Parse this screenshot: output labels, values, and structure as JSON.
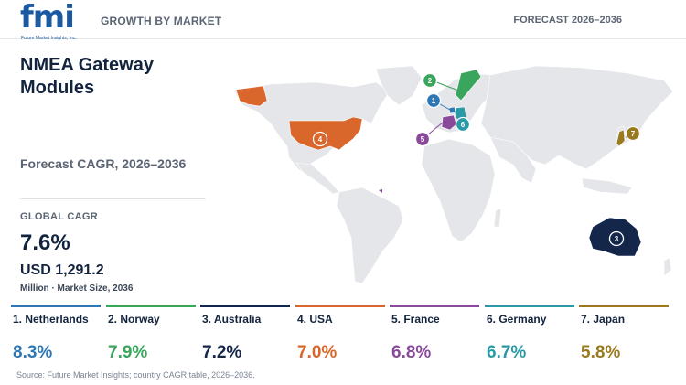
{
  "header": {
    "logo_text": "fmi",
    "logo_subtext": "Future Market Insights, Inc.",
    "section_label": "GROWTH BY MARKET",
    "forecast_label": "FORECAST 2026–2036"
  },
  "summary": {
    "title": "NMEA Gateway Modules",
    "subtitle": "Forecast CAGR, 2026–2036",
    "global_cagr_label": "GLOBAL CAGR",
    "global_cagr_value": "7.6%",
    "market_size_value": "USD 1,291.2",
    "market_size_label": "Million · Market Size, 2036"
  },
  "countries": [
    {
      "rank": "1",
      "name": "1. Netherlands",
      "cagr": "8.3%",
      "color": "#2f77b4"
    },
    {
      "rank": "2",
      "name": "2. Norway",
      "cagr": "7.9%",
      "color": "#3aa55c"
    },
    {
      "rank": "3",
      "name": "3. Australia",
      "cagr": "7.2%",
      "color": "#14274a"
    },
    {
      "rank": "4",
      "name": "4. USA",
      "cagr": "7.0%",
      "color": "#d9662a"
    },
    {
      "rank": "5",
      "name": "5. France",
      "cagr": "6.8%",
      "color": "#8a4a9c"
    },
    {
      "rank": "6",
      "name": "6. Germany",
      "cagr": "6.7%",
      "color": "#2a9aa6"
    },
    {
      "rank": "7",
      "name": "7. Japan",
      "cagr": "5.8%",
      "color": "#9a7a1e"
    }
  ],
  "source": "Source: Future Market Insights; country CAGR table, 2026–2036."
}
